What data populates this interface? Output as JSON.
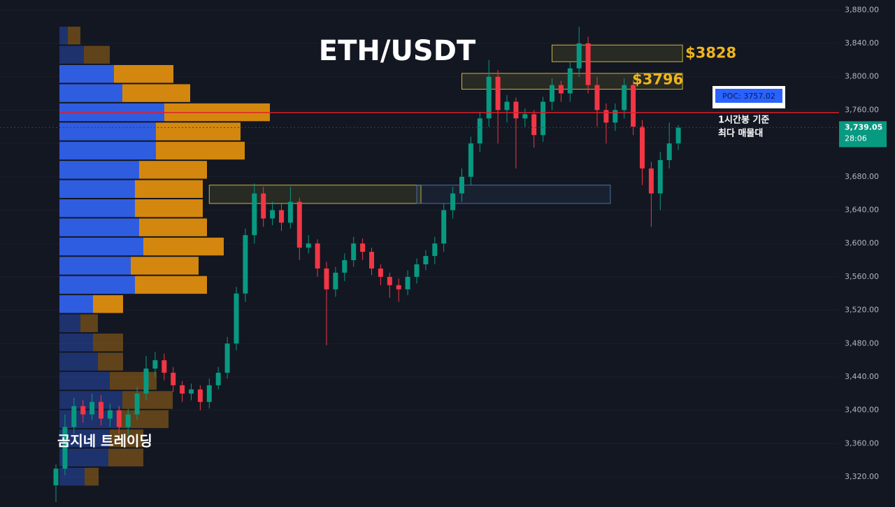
{
  "chart_data": {
    "type": "candlestick",
    "title": "ETH/USDT",
    "ylim": [
      3284,
      3892
    ],
    "yticks": [
      {
        "value": 3320,
        "label": "3,320.00"
      },
      {
        "value": 3360,
        "label": "3,360.00"
      },
      {
        "value": 3400,
        "label": "3,400.00"
      },
      {
        "value": 3440,
        "label": "3,440.00"
      },
      {
        "value": 3480,
        "label": "3,480.00"
      },
      {
        "value": 3520,
        "label": "3,520.00"
      },
      {
        "value": 3560,
        "label": "3,560.00"
      },
      {
        "value": 3600,
        "label": "3,600.00"
      },
      {
        "value": 3640,
        "label": "3,640.00"
      },
      {
        "value": 3680,
        "label": "3,680.00"
      },
      {
        "value": 3720,
        "label": "3,720.00"
      },
      {
        "value": 3760,
        "label": "3,760.00"
      },
      {
        "value": 3800,
        "label": "3,800.00"
      },
      {
        "value": 3840,
        "label": "3,840.00"
      },
      {
        "value": 3880,
        "label": "3,880.00"
      }
    ],
    "grid": true,
    "up_color": "#089981",
    "down_color": "#f23645",
    "open": [
      3310,
      3330,
      3380,
      3405,
      3395,
      3410,
      3390,
      3400,
      3380,
      3395,
      3420,
      3450,
      3460,
      3445,
      3430,
      3420,
      3425,
      3410,
      3430,
      3445,
      3480,
      3540,
      3610,
      3660,
      3630,
      3640,
      3625,
      3650,
      3595,
      3600,
      3570,
      3545,
      3565,
      3580,
      3600,
      3590,
      3570,
      3560,
      3550,
      3545,
      3560,
      3575,
      3585,
      3600,
      3640,
      3660,
      3680,
      3720,
      3750,
      3800,
      3760,
      3770,
      3750,
      3755,
      3730,
      3770,
      3790,
      3780,
      3810,
      3840,
      3790,
      3760,
      3745,
      3760,
      3790,
      3740,
      3690,
      3660,
      3700,
      3720
    ],
    "high": [
      3335,
      3395,
      3415,
      3412,
      3420,
      3418,
      3408,
      3405,
      3402,
      3428,
      3465,
      3470,
      3468,
      3452,
      3435,
      3432,
      3430,
      3438,
      3452,
      3488,
      3548,
      3618,
      3672,
      3668,
      3650,
      3648,
      3668,
      3655,
      3610,
      3605,
      3578,
      3572,
      3588,
      3608,
      3606,
      3595,
      3575,
      3565,
      3558,
      3568,
      3582,
      3592,
      3608,
      3648,
      3668,
      3690,
      3728,
      3758,
      3820,
      3808,
      3778,
      3775,
      3762,
      3760,
      3776,
      3798,
      3795,
      3818,
      3860,
      3848,
      3800,
      3768,
      3768,
      3798,
      3796,
      3748,
      3698,
      3710,
      3745,
      3742
    ],
    "low": [
      3290,
      3322,
      3372,
      3385,
      3388,
      3382,
      3380,
      3372,
      3370,
      3388,
      3412,
      3440,
      3436,
      3422,
      3410,
      3412,
      3400,
      3402,
      3425,
      3438,
      3472,
      3530,
      3600,
      3620,
      3622,
      3615,
      3618,
      3580,
      3588,
      3560,
      3478,
      3536,
      3555,
      3572,
      3580,
      3562,
      3550,
      3535,
      3530,
      3538,
      3552,
      3568,
      3575,
      3590,
      3630,
      3650,
      3670,
      3710,
      3740,
      3720,
      3745,
      3690,
      3740,
      3715,
      3722,
      3760,
      3770,
      3770,
      3800,
      3780,
      3740,
      3720,
      3735,
      3750,
      3730,
      3670,
      3620,
      3640,
      3690,
      3712
    ],
    "close": [
      3330,
      3380,
      3405,
      3395,
      3410,
      3390,
      3400,
      3380,
      3395,
      3420,
      3450,
      3460,
      3445,
      3430,
      3420,
      3425,
      3410,
      3430,
      3445,
      3480,
      3540,
      3610,
      3660,
      3630,
      3640,
      3625,
      3650,
      3595,
      3600,
      3570,
      3545,
      3565,
      3580,
      3600,
      3590,
      3570,
      3560,
      3550,
      3545,
      3560,
      3575,
      3585,
      3600,
      3640,
      3660,
      3680,
      3720,
      3750,
      3800,
      3760,
      3770,
      3750,
      3755,
      3730,
      3770,
      3790,
      3780,
      3810,
      3840,
      3790,
      3760,
      3745,
      3760,
      3790,
      3740,
      3690,
      3660,
      3700,
      3720,
      3739.05
    ],
    "volume_profile": {
      "buy_color": "#2f5de0",
      "sell_color": "#d4870f",
      "value_area": [
        3515,
        3814
      ],
      "edges": [
        3860,
        3837,
        3814,
        3791,
        3768,
        3745,
        3722,
        3699,
        3676,
        3653,
        3630,
        3607,
        3584,
        3561,
        3538,
        3515,
        3492,
        3469,
        3446,
        3423,
        3400,
        3377,
        3354,
        3331,
        3308
      ],
      "buy": [
        12,
        35,
        78,
        90,
        150,
        138,
        138,
        114,
        108,
        108,
        114,
        120,
        102,
        108,
        48,
        30,
        48,
        55,
        72,
        90,
        84,
        72,
        70,
        36
      ],
      "sell": [
        18,
        37,
        85,
        97,
        151,
        121,
        127,
        97,
        97,
        97,
        97,
        115,
        97,
        103,
        43,
        25,
        43,
        36,
        67,
        72,
        72,
        48,
        50,
        20
      ]
    },
    "poc": {
      "value": 3757.02,
      "label": "POC: 3757.02",
      "color": "#e01e2a"
    },
    "zones": [
      {
        "top": 3838,
        "bottom": 3818,
        "start": 55,
        "end": 69,
        "value": 3828,
        "label": "$3828",
        "color": "#c9b53a"
      },
      {
        "top": 3804,
        "bottom": 3785,
        "start": 45,
        "end": 69,
        "value": 3796,
        "label": "$3796",
        "color": "#c9b53a"
      },
      {
        "top": 3670,
        "bottom": 3648,
        "start": 17,
        "end": 40,
        "color": "#c9b53a"
      },
      {
        "top": 3670,
        "bottom": 3648,
        "start": 40,
        "end": 61,
        "color": "#4a6fa5"
      }
    ],
    "last_price": {
      "value": 3739.05,
      "label": "3,739.05",
      "countdown": "28:06"
    },
    "annotations": [
      "1시간봉 기준",
      "최다 매물대"
    ],
    "watermark": "곰지네 트레이딩"
  }
}
